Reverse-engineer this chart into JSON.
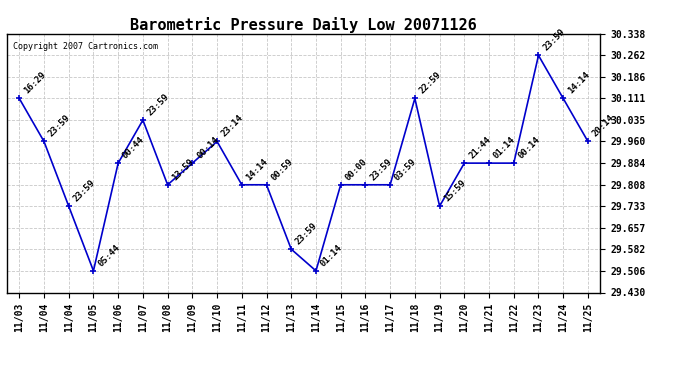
{
  "title": "Barometric Pressure Daily Low 20071126",
  "copyright": "Copyright 2007 Cartronics.com",
  "x_labels": [
    "11/03",
    "11/04",
    "11/04",
    "11/05",
    "11/06",
    "11/07",
    "11/08",
    "11/09",
    "11/10",
    "11/11",
    "11/12",
    "11/13",
    "11/14",
    "11/15",
    "11/16",
    "11/17",
    "11/18",
    "11/19",
    "11/20",
    "11/21",
    "11/22",
    "11/23",
    "11/24",
    "11/25"
  ],
  "x_indices": [
    0,
    1,
    2,
    3,
    4,
    5,
    6,
    7,
    8,
    9,
    10,
    11,
    12,
    13,
    14,
    15,
    16,
    17,
    18,
    19,
    20,
    21,
    22,
    23
  ],
  "y_values": [
    30.111,
    29.96,
    29.733,
    29.506,
    29.884,
    30.035,
    29.808,
    29.884,
    29.96,
    29.808,
    29.808,
    29.582,
    29.506,
    29.808,
    29.808,
    29.808,
    30.111,
    29.733,
    29.884,
    29.884,
    29.884,
    30.262,
    30.111,
    29.96
  ],
  "point_labels": [
    "16:29",
    "23:59",
    "23:59",
    "05:44",
    "00:44",
    "23:59",
    "13:59",
    "00:14",
    "23:14",
    "14:14",
    "00:59",
    "23:59",
    "01:14",
    "00:00",
    "23:59",
    "03:59",
    "22:59",
    "15:59",
    "21:44",
    "01:14",
    "00:14",
    "23:59",
    "14:14",
    "20:14"
  ],
  "y_ticks": [
    29.43,
    29.506,
    29.582,
    29.657,
    29.733,
    29.808,
    29.884,
    29.96,
    30.035,
    30.111,
    30.186,
    30.262,
    30.338
  ],
  "line_color": "#0000cc",
  "marker_color": "#0000cc",
  "bg_color": "#ffffff",
  "grid_color": "#c8c8c8",
  "title_fontsize": 11,
  "label_fontsize": 6.5,
  "tick_fontsize": 7,
  "copyright_fontsize": 6
}
